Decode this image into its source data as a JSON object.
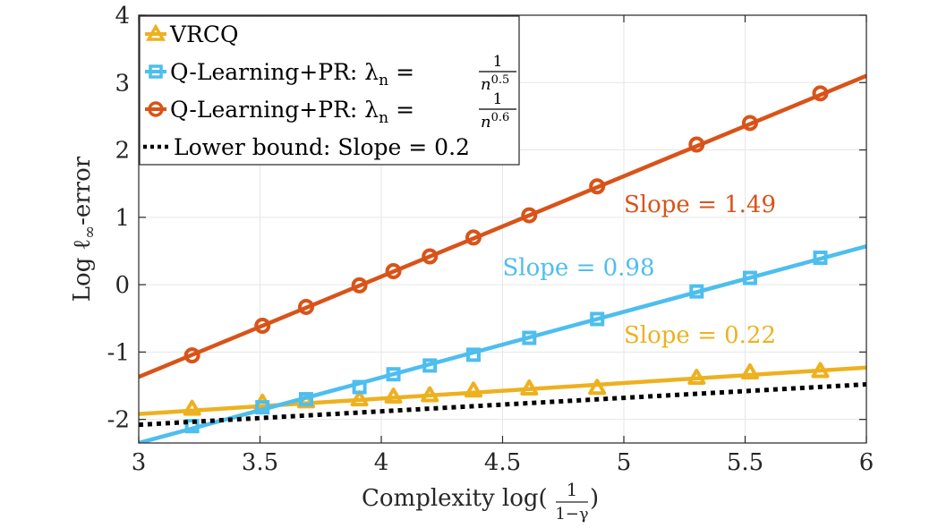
{
  "chart_data": {
    "type": "line",
    "xlabel": "Complexity log(",
    "xlabel_frac_num": "1",
    "xlabel_frac_den": "1−γ",
    "xlabel_close": ")",
    "ylabel_main": "Log ℓ",
    "ylabel_sub": "∞",
    "ylabel_tail": "-error",
    "xlim": [
      3,
      6
    ],
    "ylim": [
      -2.35,
      4
    ],
    "xticks": [
      "3",
      "3.5",
      "4",
      "4.5",
      "5",
      "5.5",
      "6"
    ],
    "xtick_values": [
      3,
      3.5,
      4,
      4.5,
      5,
      5.5,
      6
    ],
    "yticks": [
      "-2",
      "-1",
      "0",
      "1",
      "2",
      "3",
      "4"
    ],
    "ytick_values": [
      -2,
      -1,
      0,
      1,
      2,
      3,
      4
    ],
    "grid": true,
    "legend_position": "top-left",
    "series": [
      {
        "name": "VRCQ",
        "color": "#EDB120",
        "marker": "triangle",
        "x": [
          3.22,
          3.51,
          3.69,
          3.91,
          4.05,
          4.2,
          4.38,
          4.61,
          4.89,
          5.3,
          5.52,
          5.81
        ],
        "y": [
          -1.84,
          -1.75,
          -1.73,
          -1.7,
          -1.66,
          -1.64,
          -1.57,
          -1.54,
          -1.53,
          -1.38,
          -1.3,
          -1.28
        ],
        "fit": {
          "x": [
            3,
            6
          ],
          "y": [
            -1.92,
            -1.23
          ]
        }
      },
      {
        "name": "Q-Learning+PR: λn = 1/n^0.5",
        "legend_prefix": "Q-Learning+PR: λ",
        "legend_sub": "n",
        "legend_eq": "=",
        "legend_num": "1",
        "legend_den_base": "n",
        "legend_den_exp": "0.5",
        "color": "#4DBEEE",
        "marker": "square",
        "x": [
          3.22,
          3.51,
          3.69,
          3.91,
          4.05,
          4.2,
          4.38,
          4.61,
          4.89,
          5.3,
          5.52,
          5.81
        ],
        "y": [
          -2.1,
          -1.82,
          -1.7,
          -1.52,
          -1.33,
          -1.2,
          -1.04,
          -0.79,
          -0.51,
          -0.1,
          0.1,
          0.4
        ],
        "fit": {
          "x": [
            3,
            6
          ],
          "y": [
            -2.35,
            0.57
          ]
        }
      },
      {
        "name": "Q-Learning+PR: λn = 1/n^0.6",
        "legend_prefix": "Q-Learning+PR: λ",
        "legend_sub": "n",
        "legend_eq": "=",
        "legend_num": "1",
        "legend_den_base": "n",
        "legend_den_exp": "0.6",
        "color": "#D95319",
        "marker": "circle",
        "x": [
          3.22,
          3.51,
          3.69,
          3.91,
          4.05,
          4.2,
          4.38,
          4.61,
          4.89,
          5.3,
          5.52,
          5.81
        ],
        "y": [
          -1.05,
          -0.61,
          -0.33,
          -0.01,
          0.2,
          0.42,
          0.7,
          1.03,
          1.46,
          2.08,
          2.4,
          2.84
        ],
        "fit": {
          "x": [
            3,
            6
          ],
          "y": [
            -1.37,
            3.1
          ]
        }
      },
      {
        "name": "Lower bound: Slope = 0.2",
        "color": "#000000",
        "marker": "none",
        "line_style": "dotted",
        "x": [
          3,
          6
        ],
        "y": [
          -2.08,
          -1.48
        ]
      }
    ],
    "annotations": [
      {
        "text": "Slope = 1.49",
        "color": "#D95319",
        "x": 5.0,
        "y": 1.08
      },
      {
        "text": "Slope = 0.98",
        "color": "#4DBEEE",
        "x": 4.5,
        "y": 0.14
      },
      {
        "text": "Slope = 0.22",
        "color": "#EDB120",
        "x": 5.0,
        "y": -0.86
      }
    ]
  }
}
